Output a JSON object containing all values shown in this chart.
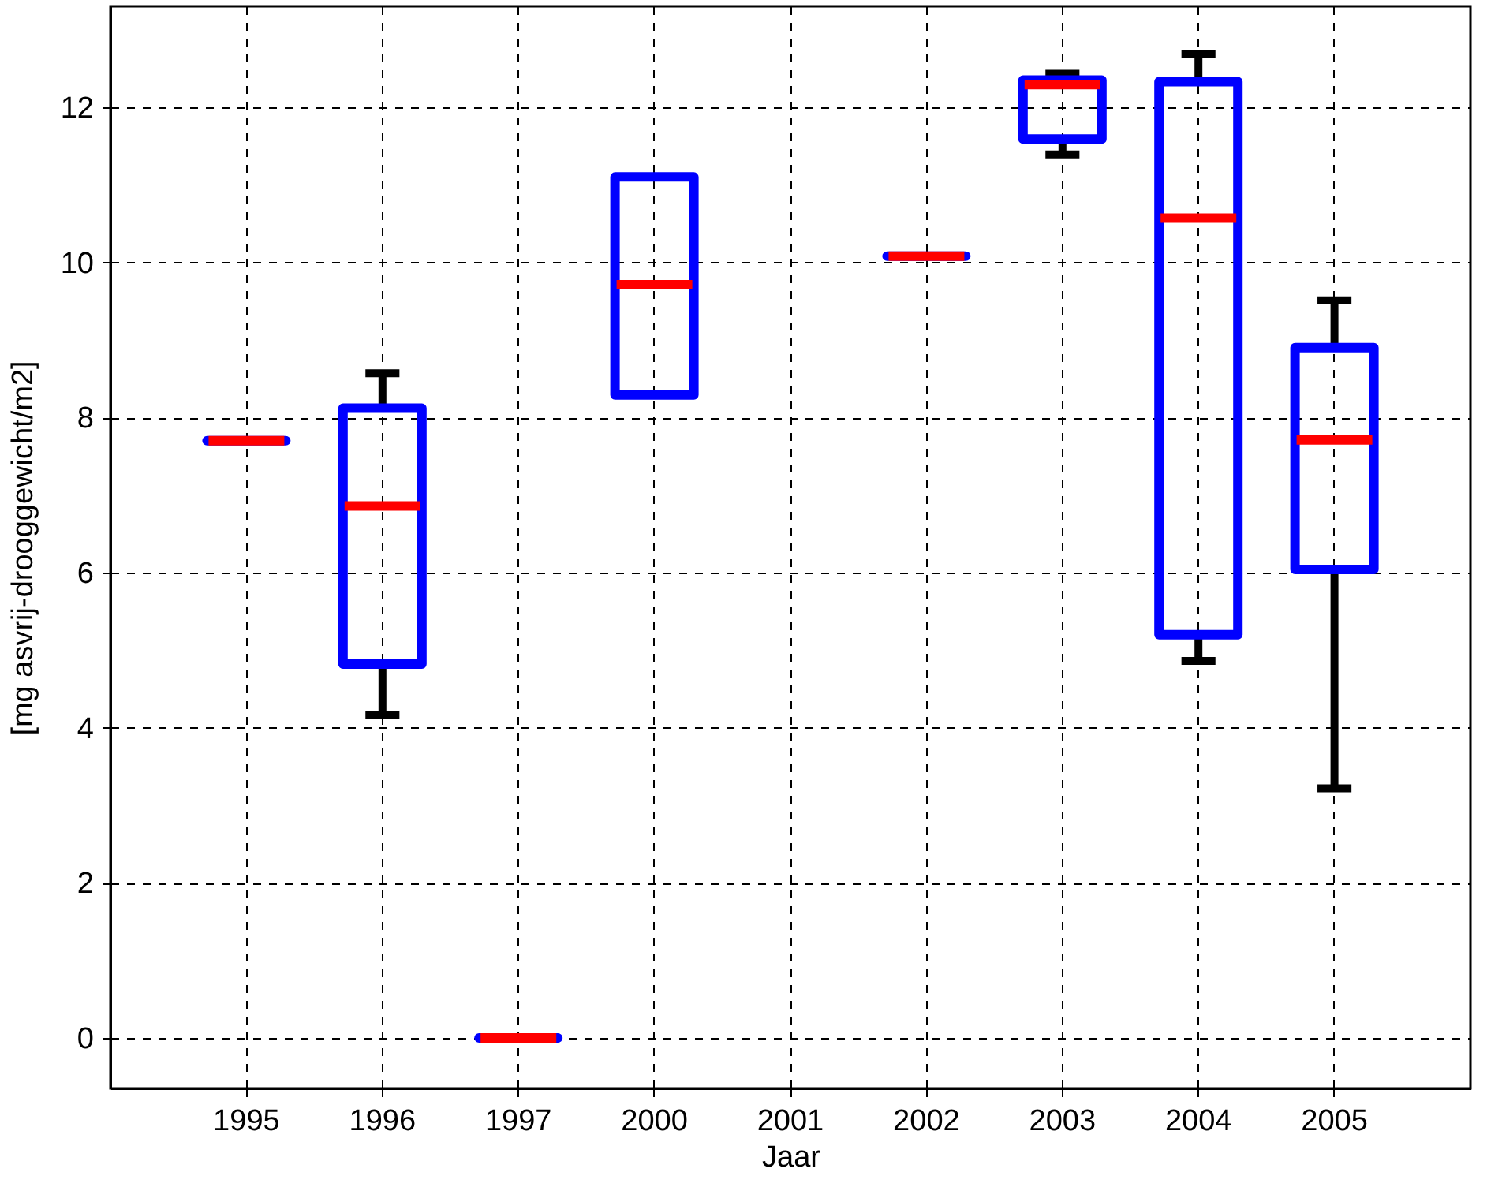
{
  "chart_data": {
    "type": "box",
    "xlabel": "Jaar",
    "ylabel": "[mg asvrij-drooggewicht/m2]",
    "categories": [
      "1995",
      "1996",
      "1997",
      "2000",
      "2001",
      "2002",
      "2003",
      "2004",
      "2005"
    ],
    "boxes": [
      {
        "low": 7.7,
        "q1": 7.7,
        "median": 7.7,
        "q3": 7.7,
        "high": 7.7
      },
      {
        "low": 4.16,
        "q1": 4.82,
        "median": 6.86,
        "q3": 8.12,
        "high": 8.57
      },
      {
        "low": 0,
        "q1": 0,
        "median": 0,
        "q3": 0,
        "high": 0
      },
      {
        "low": 8.29,
        "q1": 8.29,
        "median": 9.71,
        "q3": 11.1,
        "high": 11.1
      },
      null,
      {
        "low": 10.08,
        "q1": 10.08,
        "median": 10.08,
        "q3": 10.08,
        "high": 10.08
      },
      {
        "low": 11.39,
        "q1": 11.59,
        "median": 12.29,
        "q3": 12.35,
        "high": 12.43
      },
      {
        "low": 4.86,
        "q1": 5.2,
        "median": 10.57,
        "q3": 12.33,
        "high": 12.69
      },
      {
        "low": 3.22,
        "q1": 6.04,
        "median": 7.71,
        "q3": 8.9,
        "high": 9.51
      }
    ],
    "ylim": [
      -0.65,
      13.3
    ],
    "yticks": [
      0,
      2,
      4,
      6,
      8,
      10,
      12
    ],
    "grid": true
  }
}
